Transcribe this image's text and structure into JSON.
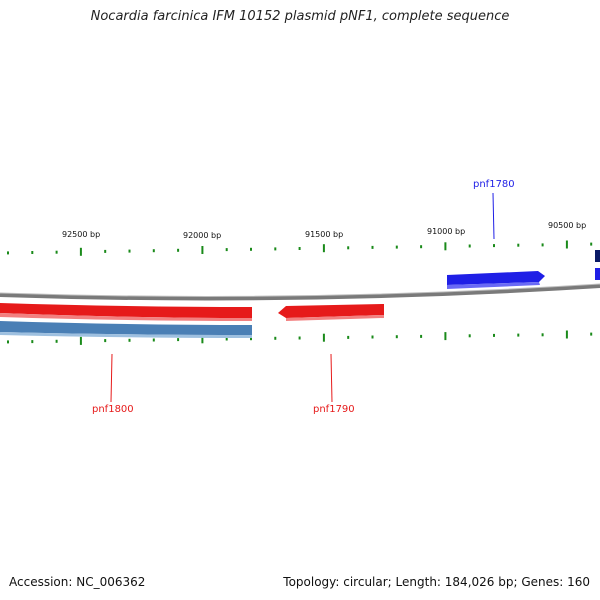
{
  "title": "Nocardia farcinica IFM 10152 plasmid pNF1, complete sequence",
  "footer": {
    "accession": "Accession: NC_006362",
    "summary": "Topology: circular; Length: 184,026 bp; Genes: 160"
  },
  "colors": {
    "backbone": "#7a7a7a",
    "tick": "#1a8a1a",
    "forward_gene": "#1f1fe6",
    "reverse_gene": "#e61a1a",
    "cds_bar": "#4a7fb5",
    "dark_gene": "#0a1a66"
  },
  "position_labels": [
    "92500 bp",
    "92000 bp",
    "91500 bp",
    "91000 bp",
    "90500 bp"
  ],
  "genes": [
    {
      "name": "pnf1780",
      "strand": "forward"
    },
    {
      "name": "pnf1790",
      "strand": "reverse"
    },
    {
      "name": "pnf1800",
      "strand": "reverse"
    }
  ]
}
